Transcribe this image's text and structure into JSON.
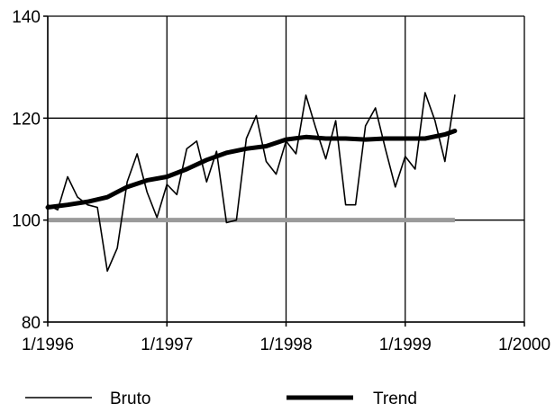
{
  "chart_data": {
    "type": "line",
    "title": "",
    "xlabel": "",
    "ylabel": "",
    "x_ticks": [
      "1/1996",
      "1/1997",
      "1/1998",
      "1/1999",
      "1/2000"
    ],
    "y_ticks": [
      80,
      100,
      120,
      140
    ],
    "xlim": [
      "1996-01",
      "2000-01"
    ],
    "ylim": [
      80,
      140
    ],
    "grid": true,
    "legend_position": "bottom",
    "reference_line": {
      "y": 100,
      "color": "#9a9a9a"
    },
    "series": [
      {
        "name": "Bruto",
        "style": "thin",
        "color": "#000000",
        "points": [
          [
            "1996-01",
            103
          ],
          [
            "1996-02",
            102
          ],
          [
            "1996-03",
            108.5
          ],
          [
            "1996-04",
            104.5
          ],
          [
            "1996-05",
            103
          ],
          [
            "1996-06",
            102.5
          ],
          [
            "1996-07",
            90
          ],
          [
            "1996-08",
            94.5
          ],
          [
            "1996-09",
            107.5
          ],
          [
            "1996-10",
            113
          ],
          [
            "1996-11",
            105.5
          ],
          [
            "1996-12",
            100.5
          ],
          [
            "1997-01",
            107
          ],
          [
            "1997-02",
            105
          ],
          [
            "1997-03",
            114
          ],
          [
            "1997-04",
            115.5
          ],
          [
            "1997-05",
            107.5
          ],
          [
            "1997-06",
            113.5
          ],
          [
            "1997-07",
            99.5
          ],
          [
            "1997-08",
            100
          ],
          [
            "1997-09",
            116
          ],
          [
            "1997-10",
            120.5
          ],
          [
            "1997-11",
            111.5
          ],
          [
            "1997-12",
            109
          ],
          [
            "1998-01",
            115.5
          ],
          [
            "1998-02",
            113
          ],
          [
            "1998-03",
            124.5
          ],
          [
            "1998-04",
            118
          ],
          [
            "1998-05",
            112
          ],
          [
            "1998-06",
            119.5
          ],
          [
            "1998-07",
            103
          ],
          [
            "1998-08",
            103
          ],
          [
            "1998-09",
            118.5
          ],
          [
            "1998-10",
            122
          ],
          [
            "1998-11",
            114
          ],
          [
            "1998-12",
            106.5
          ],
          [
            "1999-01",
            112.5
          ],
          [
            "1999-02",
            110
          ],
          [
            "1999-03",
            125
          ],
          [
            "1999-04",
            119.5
          ],
          [
            "1999-05",
            111.5
          ],
          [
            "1999-06",
            124.5
          ]
        ]
      },
      {
        "name": "Trend",
        "style": "thick",
        "color": "#000000",
        "points": [
          [
            "1996-01",
            102.5
          ],
          [
            "1996-03",
            103
          ],
          [
            "1996-05",
            103.6
          ],
          [
            "1996-07",
            104.5
          ],
          [
            "1996-09",
            106.5
          ],
          [
            "1996-11",
            107.8
          ],
          [
            "1997-01",
            108.5
          ],
          [
            "1997-03",
            110
          ],
          [
            "1997-05",
            111.8
          ],
          [
            "1997-07",
            113.2
          ],
          [
            "1997-09",
            114
          ],
          [
            "1997-11",
            114.5
          ],
          [
            "1998-01",
            115.8
          ],
          [
            "1998-03",
            116.3
          ],
          [
            "1998-05",
            116
          ],
          [
            "1998-07",
            116
          ],
          [
            "1998-09",
            115.8
          ],
          [
            "1998-11",
            116
          ],
          [
            "1999-01",
            116
          ],
          [
            "1999-03",
            116
          ],
          [
            "1999-05",
            116.8
          ],
          [
            "1999-06",
            117.5
          ]
        ]
      }
    ]
  }
}
